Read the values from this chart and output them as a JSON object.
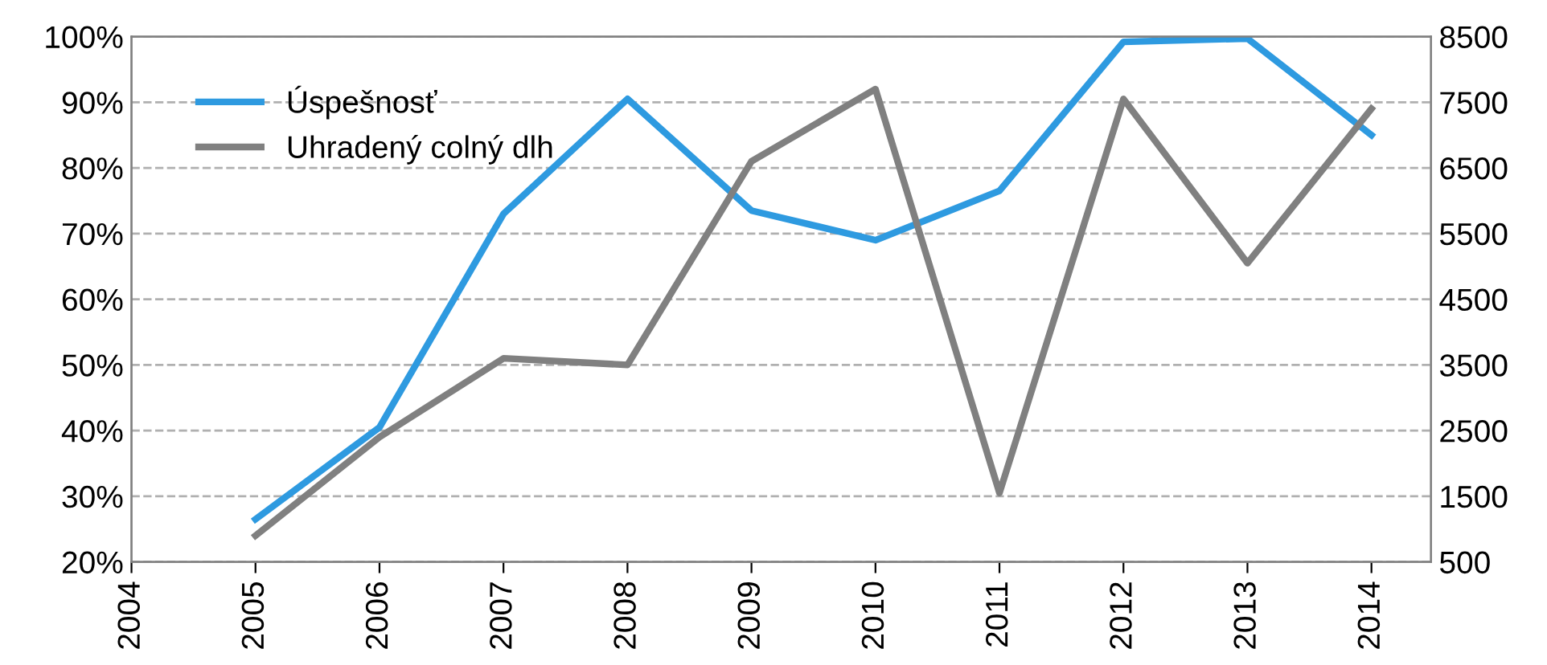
{
  "chart_data": {
    "type": "line",
    "x": [
      2005,
      2006,
      2007,
      2008,
      2009,
      2010,
      2011,
      2012,
      2013,
      2014
    ],
    "series": [
      {
        "name": "Úspešnosť",
        "color": "#2e9ae0",
        "values": [
          26.5,
          40.5,
          73,
          90.5,
          73.5,
          69,
          76.5,
          99.2,
          99.7,
          85
        ]
      },
      {
        "name": "Uhradený colný dlh",
        "color": "#808080",
        "axis": "y2",
        "values": [
          900,
          2400,
          3600,
          3500,
          6600,
          7700,
          1550,
          7550,
          5050,
          7400
        ]
      }
    ],
    "xlim": [
      2004,
      2014.48
    ],
    "xticks": [
      2004,
      2005,
      2006,
      2007,
      2008,
      2009,
      2010,
      2011,
      2012,
      2013,
      2014
    ],
    "ylim": [
      20,
      100
    ],
    "yticks": [
      {
        "value": 20,
        "label": "20%"
      },
      {
        "value": 30,
        "label": "30%"
      },
      {
        "value": 40,
        "label": "40%"
      },
      {
        "value": 50,
        "label": "50%"
      },
      {
        "value": 60,
        "label": "60%"
      },
      {
        "value": 70,
        "label": "70%"
      },
      {
        "value": 80,
        "label": "80%"
      },
      {
        "value": 90,
        "label": "90%"
      },
      {
        "value": 100,
        "label": "100%"
      }
    ],
    "y2lim": [
      500,
      8500
    ],
    "y2ticks": [
      500,
      1500,
      2500,
      3500,
      4500,
      5500,
      6500,
      7500,
      8500
    ],
    "grid": "y",
    "legend": "top left",
    "marker": "none",
    "line_style": "solid"
  }
}
